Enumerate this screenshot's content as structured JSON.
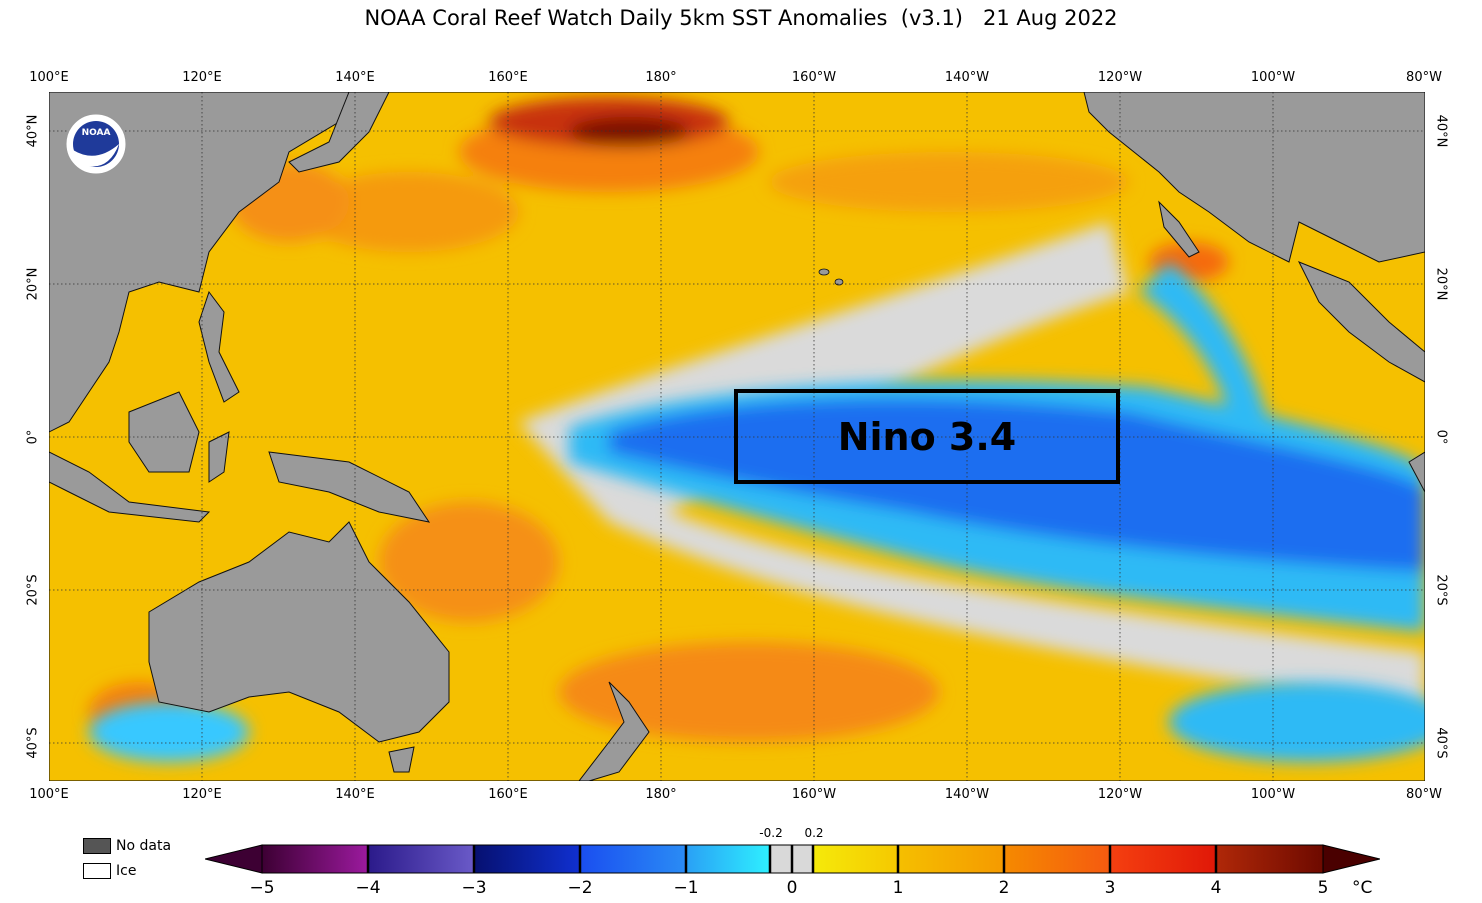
{
  "title": "NOAA Coral Reef Watch Daily 5km SST Anomalies  (v3.1)   21 Aug 2022",
  "lon_ticks": [
    "100°E",
    "120°E",
    "140°E",
    "160°E",
    "180°",
    "160°W",
    "140°W",
    "120°W",
    "100°W",
    "80°W"
  ],
  "lat_ticks": [
    "40°N",
    "20°N",
    "0°",
    "20°S",
    "40°S"
  ],
  "logo_text": "NOAA",
  "region_box": {
    "label": "Nino 3.4"
  },
  "legend": {
    "no_data": "No data",
    "ice": "Ice"
  },
  "colorbar": {
    "ticks": [
      "−5",
      "−4",
      "−3",
      "−2",
      "−1",
      "0",
      "1",
      "2",
      "3",
      "4",
      "5"
    ],
    "near_zero": [
      "-0.2",
      "0.2"
    ],
    "unit": "°C",
    "colors": {
      "dark_purple": "#3d0033",
      "purple": "#9b1a9e",
      "indigo": "#3a2fa3",
      "navy": "#0b1ba8",
      "blue": "#1e5cf0",
      "sky": "#2aa0f5",
      "cyan": "#2ef0ff",
      "neutral": "#d9d9d9",
      "yellow": "#f5ea0a",
      "amber": "#f5b000",
      "orange": "#f57f00",
      "red": "#f52a10",
      "darkred": "#9e1a05",
      "maroon": "#4a0000"
    }
  },
  "map_colors": {
    "land": "#9a9a9a",
    "ocean_warm": "#f5c400",
    "ocean_hot": "#f58a10",
    "ocean_neutral": "#dcdcdc",
    "ocean_cool": "#38c8ff",
    "ocean_cold": "#1a6ef5"
  }
}
